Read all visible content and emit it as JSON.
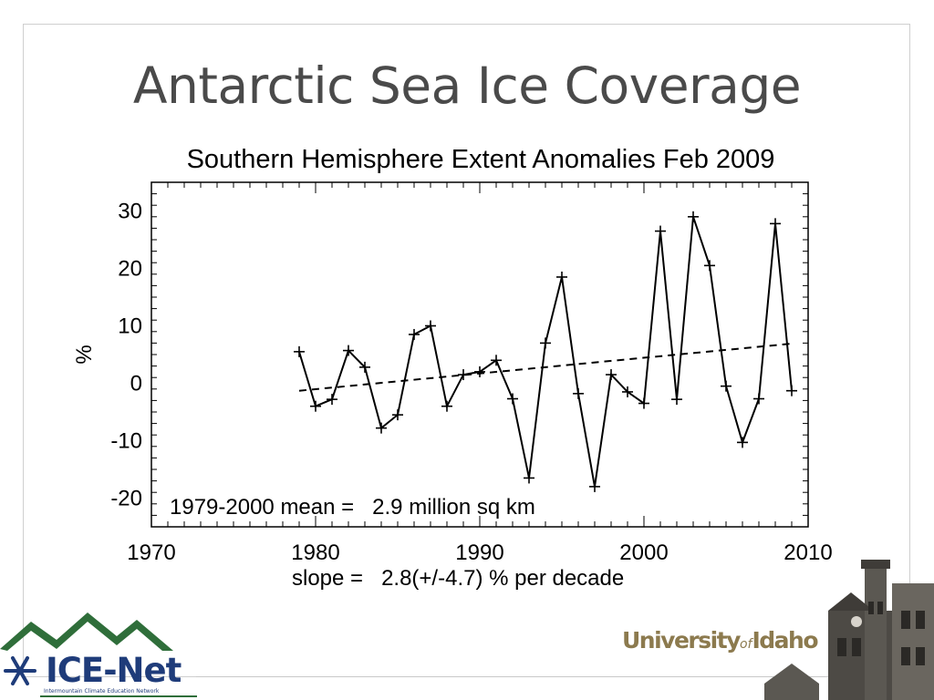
{
  "slide": {
    "title": "Antarctic Sea Ice Coverage"
  },
  "logos": {
    "icenet_name": "ICE-Net",
    "icenet_tagline": "Intermountain Climate Education Network",
    "university_prefix": "University",
    "university_of": "of",
    "university_suffix": "Idaho"
  },
  "chart_data": {
    "type": "line",
    "title": "Southern Hemisphere Extent Anomalies Feb 2009",
    "xlabel": "",
    "ylabel": "%",
    "xlim": [
      1970,
      2010
    ],
    "ylim": [
      -25,
      35
    ],
    "xticks": [
      1970,
      1980,
      1990,
      2000,
      2010
    ],
    "yticks": [
      -20,
      -10,
      0,
      10,
      20,
      30
    ],
    "grid": false,
    "series": [
      {
        "style": "solid-with-plus-markers",
        "color": "#000000",
        "x": [
          1979,
          1980,
          1981,
          1982,
          1983,
          1984,
          1985,
          1986,
          1987,
          1988,
          1989,
          1990,
          1991,
          1992,
          1993,
          1994,
          1995,
          1996,
          1997,
          1998,
          1999,
          2000,
          2001,
          2002,
          2003,
          2004,
          2005,
          2006,
          2007,
          2008,
          2009
        ],
        "y": [
          5.5,
          -4.0,
          -2.8,
          5.7,
          2.8,
          -7.8,
          -5.5,
          8.5,
          10.0,
          -4.0,
          1.5,
          2.0,
          4.0,
          -2.7,
          -16.5,
          7.0,
          18.5,
          -1.8,
          -18.0,
          1.5,
          -1.5,
          -3.5,
          26.5,
          -2.8,
          29.0,
          20.5,
          -0.5,
          -10.3,
          -2.7,
          27.8,
          -1.3
        ]
      },
      {
        "style": "dashed-trend",
        "color": "#000000",
        "x": [
          1979,
          2009
        ],
        "y": [
          -1.3,
          6.9
        ]
      }
    ],
    "annotations": [
      "1979-2000 mean =   2.9 million sq km",
      "slope =   2.8(+/-4.7) % per decade"
    ]
  }
}
